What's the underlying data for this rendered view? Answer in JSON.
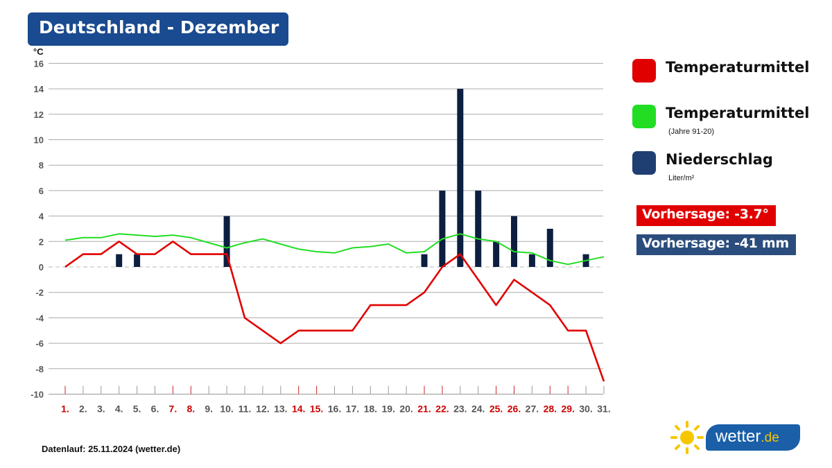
{
  "header": {
    "title": "Deutschland - Dezember"
  },
  "legend": [
    {
      "label": "Temperaturmittel",
      "sub": "",
      "color": "#e00000"
    },
    {
      "label": "Temperaturmittel",
      "sub": "(Jahre 91-20)",
      "color": "#22dd22"
    },
    {
      "label": "Niederschlag",
      "sub": "Liter/m²",
      "color": "#1f3f73"
    }
  ],
  "badges": {
    "temp": {
      "text": "Vorhersage: -3.7°",
      "color": "#e00000"
    },
    "rain": {
      "text": "Vorhersage: -41 mm",
      "color": "#2b4d7e"
    }
  },
  "footer": {
    "text": "Datenlauf: 25.11.2024 (wetter.de)"
  },
  "logo": {
    "name": "wetter",
    "tld": ".de"
  },
  "chart_data": {
    "type": "line",
    "title": "Deutschland - Dezember",
    "ylabel": "°C",
    "ylim": [
      -10,
      16
    ],
    "yticks": [
      16,
      14,
      12,
      10,
      8,
      6,
      4,
      2,
      0,
      -2,
      -4,
      -6,
      -8,
      -10
    ],
    "categories": [
      "1.",
      "2.",
      "3.",
      "4.",
      "5.",
      "6.",
      "7.",
      "8.",
      "9.",
      "10.",
      "11.",
      "12.",
      "13.",
      "14.",
      "15.",
      "16.",
      "17.",
      "18.",
      "19.",
      "20.",
      "21.",
      "22.",
      "23.",
      "24.",
      "25.",
      "26.",
      "27.",
      "28.",
      "29.",
      "30.",
      "31."
    ],
    "highlight_days": [
      "1.",
      "7.",
      "8.",
      "14.",
      "15.",
      "21.",
      "22.",
      "25.",
      "26.",
      "28.",
      "29."
    ],
    "grid": true,
    "legend_position": "right",
    "series": [
      {
        "name": "Temperaturmittel",
        "type": "line",
        "color": "#e00000",
        "values": [
          0,
          1,
          1,
          2,
          1,
          1,
          2,
          1,
          1,
          1,
          -4,
          -5,
          -6,
          -5,
          -5,
          -5,
          -5,
          -3,
          -3,
          -3,
          -2,
          0,
          1,
          -1,
          -3,
          -1,
          -2,
          -3,
          -5,
          -5,
          -9
        ]
      },
      {
        "name": "Temperaturmittel (Jahre 91-20)",
        "type": "line",
        "color": "#22dd22",
        "values": [
          2.1,
          2.3,
          2.3,
          2.6,
          2.5,
          2.4,
          2.5,
          2.3,
          1.9,
          1.5,
          1.9,
          2.2,
          1.8,
          1.4,
          1.2,
          1.1,
          1.5,
          1.6,
          1.8,
          1.1,
          1.2,
          2.2,
          2.6,
          2.2,
          2.0,
          1.2,
          1.1,
          0.5,
          0.2,
          0.5,
          0.8
        ]
      },
      {
        "name": "Niederschlag",
        "type": "bar",
        "color": "#0d1f40",
        "values": [
          0,
          0,
          0,
          1,
          1,
          0,
          0,
          0,
          0,
          4,
          0,
          0,
          0,
          0,
          0,
          0,
          0,
          0,
          0,
          0,
          1,
          6,
          14,
          6,
          2,
          4,
          1,
          3,
          0,
          1,
          0
        ]
      }
    ]
  }
}
